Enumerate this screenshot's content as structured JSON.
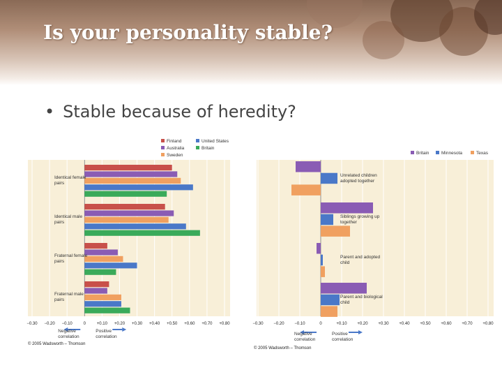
{
  "slide": {
    "title": "Is your personality stable?",
    "bullet": "Stable because of heredity?"
  },
  "chart_data": [
    {
      "type": "bar",
      "orientation": "horizontal",
      "categories": [
        "Identical female pairs",
        "Identical male pairs",
        "Fraternal female pairs",
        "Fraternal male pairs"
      ],
      "series": [
        {
          "name": "Finland",
          "color": "#c8504a",
          "values": [
            0.5,
            0.46,
            0.13,
            0.14
          ]
        },
        {
          "name": "Australia",
          "color": "#8a5cb4",
          "values": [
            0.53,
            0.51,
            0.19,
            0.13
          ]
        },
        {
          "name": "Sweden",
          "color": "#f0a060",
          "values": [
            0.55,
            0.48,
            0.22,
            0.21
          ]
        },
        {
          "name": "United States",
          "color": "#4a78c8",
          "values": [
            0.62,
            0.58,
            0.3,
            0.21
          ]
        },
        {
          "name": "Britain",
          "color": "#3aaa5a",
          "values": [
            0.47,
            0.66,
            0.18,
            0.26
          ]
        }
      ],
      "xticks": [
        "−0.30",
        "−0.20",
        "−0.10",
        "0",
        "+0.10",
        "+0.20",
        "+0.30",
        "+0.40",
        "+0.50",
        "+0.60",
        "+0.70",
        "+0.80"
      ],
      "xlim": [
        -0.3,
        0.8
      ],
      "negative_label": "Negative correlation",
      "positive_label": "Positive correlation",
      "legend_position": "top",
      "copyright": "© 2005 Wadsworth – Thomson"
    },
    {
      "type": "bar",
      "orientation": "horizontal",
      "categories": [
        "Unrelated children adopted together",
        "Siblings growing up together",
        "Parent and adopted child",
        "Parent and biological child"
      ],
      "series": [
        {
          "name": "Britain",
          "color": "#8a5cb4",
          "values": [
            -0.12,
            0.25,
            -0.02,
            0.22
          ]
        },
        {
          "name": "Minnesota",
          "color": "#4a78c8",
          "values": [
            0.08,
            0.06,
            0.01,
            0.09
          ]
        },
        {
          "name": "Texas",
          "color": "#f0a060",
          "values": [
            -0.14,
            0.14,
            0.02,
            0.08
          ]
        }
      ],
      "xticks": [
        "−0.30",
        "−0.20",
        "−0.10",
        "0",
        "+0.10",
        "+0.20",
        "+0.30",
        "+0.40",
        "+0.50",
        "+0.60",
        "+0.70",
        "+0.80"
      ],
      "xlim": [
        -0.3,
        0.8
      ],
      "negative_label": "Negative correlation",
      "positive_label": "Positive correlation",
      "legend_position": "top-right",
      "copyright": "© 2005 Wadsworth – Thomson"
    }
  ]
}
